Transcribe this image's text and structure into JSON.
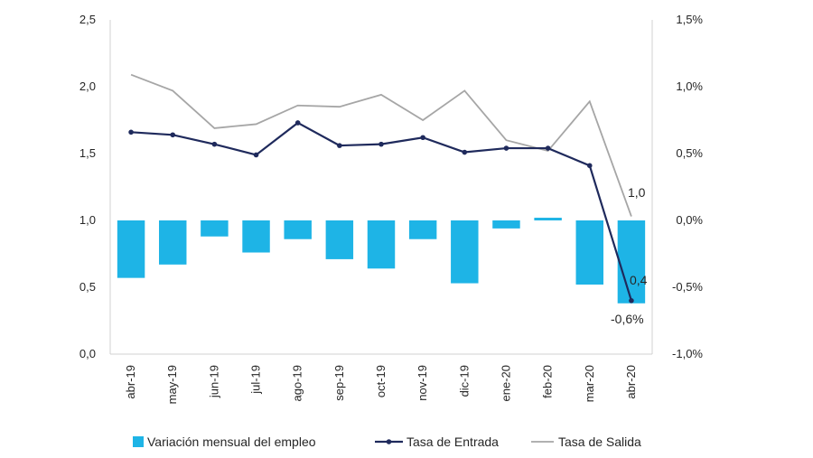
{
  "chart_data": {
    "type": "bar+line",
    "categories": [
      "abr-19",
      "may-19",
      "jun-19",
      "jul-19",
      "ago-19",
      "sep-19",
      "oct-19",
      "nov-19",
      "dic-19",
      "ene-20",
      "feb-20",
      "mar-20",
      "abr-20"
    ],
    "left_axis": {
      "min": 0,
      "max": 2.5,
      "ticks": [
        "0,0",
        "0,5",
        "1,0",
        "1,5",
        "2,0",
        "2,5"
      ],
      "tick_values": [
        0,
        0.5,
        1.0,
        1.5,
        2.0,
        2.5
      ]
    },
    "right_axis": {
      "min": -1.0,
      "max": 1.5,
      "ticks": [
        "-1,0%",
        "-0,5%",
        "0,0%",
        "0,5%",
        "1,0%",
        "1,5%"
      ],
      "tick_values": [
        -1.0,
        -0.5,
        0.0,
        0.5,
        1.0,
        1.5
      ]
    },
    "series": [
      {
        "name": "Variación mensual del empleo",
        "kind": "bar",
        "axis": "right",
        "color": "#1eb4e6",
        "values": [
          -0.43,
          -0.33,
          -0.12,
          -0.24,
          -0.14,
          -0.29,
          -0.36,
          -0.14,
          -0.47,
          -0.06,
          0.02,
          -0.48,
          -0.62
        ]
      },
      {
        "name": "Tasa de Entrada",
        "kind": "line",
        "axis": "left",
        "color": "#1f2a5c",
        "values": [
          1.66,
          1.64,
          1.57,
          1.49,
          1.73,
          1.56,
          1.57,
          1.62,
          1.51,
          1.54,
          1.54,
          1.41,
          0.4
        ]
      },
      {
        "name": "Tasa de Salida",
        "kind": "line",
        "axis": "left",
        "color": "#a6a6a6",
        "values": [
          2.09,
          1.97,
          1.69,
          1.72,
          1.86,
          1.85,
          1.94,
          1.75,
          1.97,
          1.6,
          1.52,
          1.89,
          1.03
        ]
      }
    ],
    "annotations": [
      {
        "text": "1,0",
        "series": "Tasa de Salida",
        "index": 12
      },
      {
        "text": "0,4",
        "series": "Tasa de Entrada",
        "index": 12
      },
      {
        "text": "-0,6%",
        "series": "Variación mensual del empleo",
        "index": 12
      }
    ],
    "legend_position": "bottom"
  }
}
